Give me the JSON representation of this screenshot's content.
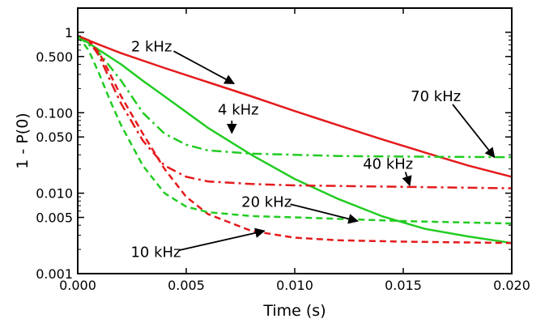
{
  "chart_data": {
    "type": "line",
    "xlabel": "Time (s)",
    "ylabel": "1 - P(0)",
    "xlim": [
      0,
      0.02
    ],
    "ylim": [
      0.001,
      2
    ],
    "yscale": "log",
    "grid": false,
    "x_ticks": [
      {
        "value": 0.0,
        "label": "0.000"
      },
      {
        "value": 0.005,
        "label": "0.005"
      },
      {
        "value": 0.01,
        "label": "0.010"
      },
      {
        "value": 0.015,
        "label": "0.015"
      },
      {
        "value": 0.02,
        "label": "0.020"
      }
    ],
    "y_ticks": [
      {
        "value": 1,
        "label": "1"
      },
      {
        "value": 0.5,
        "label": "0.500"
      },
      {
        "value": 0.1,
        "label": "0.100"
      },
      {
        "value": 0.05,
        "label": "0.050"
      },
      {
        "value": 0.01,
        "label": "0.010"
      },
      {
        "value": 0.005,
        "label": "0.005"
      },
      {
        "value": 0.001,
        "label": "0.001"
      }
    ],
    "series": [
      {
        "name": "2 kHz",
        "color": "#e41a1c",
        "style": "solid",
        "x": [
          0,
          0.001,
          0.002,
          0.004,
          0.006,
          0.008,
          0.01,
          0.012,
          0.014,
          0.016,
          0.018,
          0.02
        ],
        "y": [
          0.9,
          0.7,
          0.55,
          0.36,
          0.24,
          0.16,
          0.105,
          0.07,
          0.047,
          0.032,
          0.022,
          0.016
        ]
      },
      {
        "name": "4 kHz",
        "color": "#22cc22",
        "style": "solid",
        "x": [
          0,
          0.001,
          0.002,
          0.003,
          0.004,
          0.006,
          0.008,
          0.01,
          0.012,
          0.014,
          0.016,
          0.018,
          0.02
        ],
        "y": [
          0.9,
          0.6,
          0.4,
          0.25,
          0.16,
          0.065,
          0.03,
          0.015,
          0.0085,
          0.0052,
          0.0036,
          0.0029,
          0.0024
        ]
      },
      {
        "name": "70 kHz",
        "color": "#22cc22",
        "style": "dashdot",
        "x": [
          0,
          0.001,
          0.002,
          0.003,
          0.004,
          0.005,
          0.006,
          0.008,
          0.01,
          0.012,
          0.015,
          0.02
        ],
        "y": [
          0.9,
          0.55,
          0.25,
          0.1,
          0.055,
          0.04,
          0.034,
          0.031,
          0.03,
          0.029,
          0.0285,
          0.028
        ]
      },
      {
        "name": "40 kHz",
        "color": "#e41a1c",
        "style": "dashdot",
        "x": [
          0,
          0.0005,
          0.001,
          0.0015,
          0.002,
          0.003,
          0.004,
          0.005,
          0.006,
          0.008,
          0.01,
          0.015,
          0.02
        ],
        "y": [
          0.9,
          0.8,
          0.5,
          0.25,
          0.13,
          0.045,
          0.022,
          0.016,
          0.014,
          0.013,
          0.0125,
          0.012,
          0.0115
        ]
      },
      {
        "name": "10 kHz",
        "color": "#e41a1c",
        "style": "dashed",
        "x": [
          0,
          0.0005,
          0.001,
          0.0015,
          0.002,
          0.003,
          0.004,
          0.005,
          0.006,
          0.008,
          0.01,
          0.012,
          0.015,
          0.02
        ],
        "y": [
          0.9,
          0.8,
          0.55,
          0.3,
          0.16,
          0.055,
          0.02,
          0.009,
          0.0055,
          0.0034,
          0.0028,
          0.0026,
          0.0025,
          0.0024
        ]
      },
      {
        "name": "20 kHz",
        "color": "#22cc22",
        "style": "dashed",
        "x": [
          0,
          0.0005,
          0.001,
          0.0015,
          0.002,
          0.003,
          0.004,
          0.005,
          0.006,
          0.008,
          0.01,
          0.015,
          0.02
        ],
        "y": [
          0.9,
          0.6,
          0.3,
          0.14,
          0.07,
          0.022,
          0.01,
          0.0068,
          0.0058,
          0.0052,
          0.005,
          0.0045,
          0.0042
        ]
      }
    ],
    "annotations": [
      {
        "text": "2 kHz",
        "x": 0.0034,
        "y": 0.58,
        "arrow_to": {
          "x": 0.0072,
          "y": 0.23
        }
      },
      {
        "text": "4 kHz",
        "x": 0.0074,
        "y": 0.095,
        "arrow_to": {
          "x": 0.0071,
          "y": 0.056
        }
      },
      {
        "text": "70 kHz",
        "x": 0.0165,
        "y": 0.14,
        "arrow_to": {
          "x": 0.0192,
          "y": 0.028
        }
      },
      {
        "text": "40 kHz",
        "x": 0.0143,
        "y": 0.02,
        "arrow_to": {
          "x": 0.0153,
          "y": 0.0125
        }
      },
      {
        "text": "20 kHz",
        "x": 0.0087,
        "y": 0.0068,
        "arrow_to": {
          "x": 0.0129,
          "y": 0.0045
        }
      },
      {
        "text": "10 kHz",
        "x": 0.0036,
        "y": 0.0016,
        "arrow_to": {
          "x": 0.0086,
          "y": 0.0034
        }
      }
    ]
  }
}
